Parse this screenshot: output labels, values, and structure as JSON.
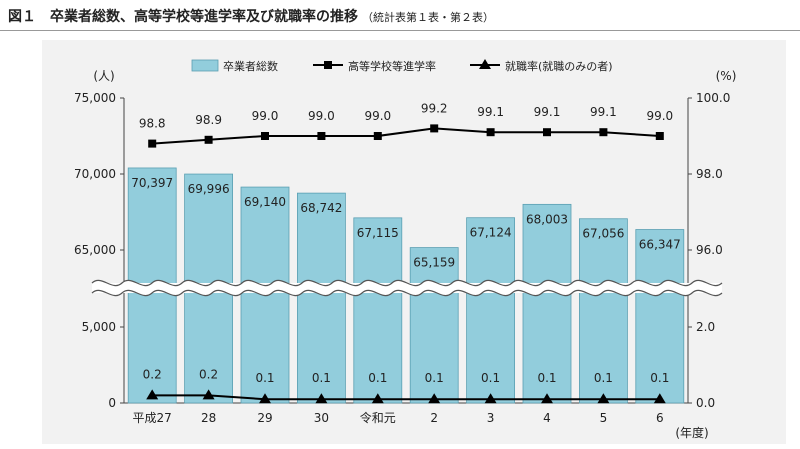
{
  "header": {
    "figure_no": "図１",
    "title": "卒業者総数、高等学校等進学率及び就職率の推移",
    "source": "（統計表第１表・第２表）"
  },
  "chart_data": {
    "type": "bar",
    "categories": [
      "平成27",
      "28",
      "29",
      "30",
      "令和元",
      "2",
      "3",
      "4",
      "5",
      "6"
    ],
    "x_unit_label": "(年度)",
    "y_left_unit": "(人)",
    "y_right_unit": "(%)",
    "y_left_ticks": [
      "75,000",
      "70,000",
      "65,000",
      "5,000",
      "0"
    ],
    "y_right_ticks": [
      "100.0",
      "98.0",
      "96.0",
      "2.0",
      "0.0"
    ],
    "axis_break": true,
    "legend_position": "top",
    "series": [
      {
        "name": "卒業者総数",
        "kind": "bar",
        "color": "#92cddc",
        "values": [
          70397,
          69996,
          69140,
          68742,
          67115,
          65159,
          67124,
          68003,
          67056,
          66347
        ],
        "labels": [
          "70,397",
          "69,996",
          "69,140",
          "68,742",
          "67,115",
          "65,159",
          "67,124",
          "68,003",
          "67,056",
          "66,347"
        ]
      },
      {
        "name": "高等学校等進学率",
        "kind": "line",
        "marker": "square",
        "color": "#000000",
        "values": [
          98.8,
          98.9,
          99.0,
          99.0,
          99.0,
          99.2,
          99.1,
          99.1,
          99.1,
          99.0
        ],
        "labels": [
          "98.8",
          "98.9",
          "99.0",
          "99.0",
          "99.0",
          "99.2",
          "99.1",
          "99.1",
          "99.1",
          "99.0"
        ]
      },
      {
        "name": "就職率(就職のみの者)",
        "kind": "line",
        "marker": "triangle",
        "color": "#000000",
        "values": [
          0.2,
          0.2,
          0.1,
          0.1,
          0.1,
          0.1,
          0.1,
          0.1,
          0.1,
          0.1
        ],
        "labels": [
          "0.2",
          "0.2",
          "0.1",
          "0.1",
          "0.1",
          "0.1",
          "0.1",
          "0.1",
          "0.1",
          "0.1"
        ]
      }
    ]
  }
}
